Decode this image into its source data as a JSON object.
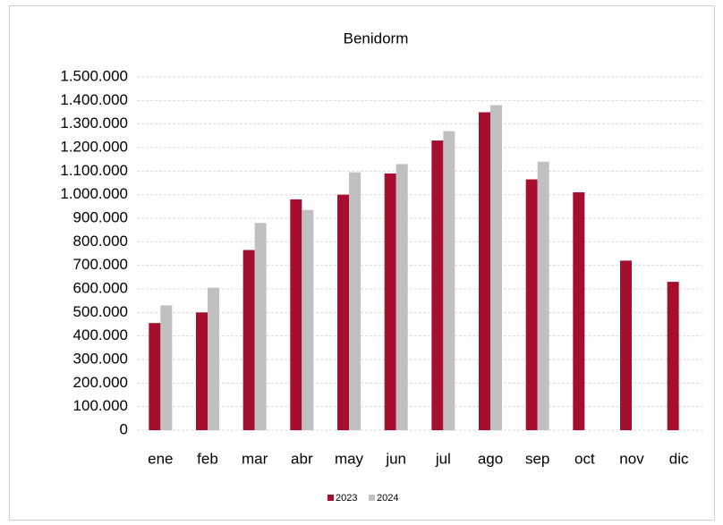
{
  "chart_data": {
    "type": "bar",
    "title": "Benidorm",
    "categories": [
      "ene",
      "feb",
      "mar",
      "abr",
      "may",
      "jun",
      "jul",
      "ago",
      "sep",
      "oct",
      "nov",
      "dic"
    ],
    "series": [
      {
        "name": "2023",
        "color": "#a50e2d",
        "values": [
          455000,
          500000,
          765000,
          980000,
          1000000,
          1090000,
          1230000,
          1350000,
          1065000,
          1010000,
          720000,
          630000
        ]
      },
      {
        "name": "2024",
        "color": "#c0c0c0",
        "values": [
          530000,
          605000,
          880000,
          935000,
          1095000,
          1130000,
          1270000,
          1380000,
          1140000,
          null,
          null,
          null
        ]
      }
    ],
    "ylim": [
      0,
      1500000
    ],
    "yticks": [
      0,
      {
        "value": 100000,
        "label": "100.000"
      },
      {
        "value": 200000,
        "label": "200.000"
      },
      {
        "value": 300000,
        "label": "300.000"
      },
      {
        "value": 400000,
        "label": "400.000"
      },
      {
        "value": 500000,
        "label": "500.000"
      },
      {
        "value": 600000,
        "label": "600.000"
      },
      {
        "value": 700000,
        "label": "700.000"
      },
      {
        "value": 800000,
        "label": "800.000"
      },
      {
        "value": 900000,
        "label": "900.000"
      },
      {
        "value": 1000000,
        "label": "1.000.000"
      },
      {
        "value": 1100000,
        "label": "1.100.000"
      },
      {
        "value": 1200000,
        "label": "1.200.000"
      },
      {
        "value": 1300000,
        "label": "1.300.000"
      },
      {
        "value": 1400000,
        "label": "1.400.000"
      },
      {
        "value": 1500000,
        "label": "1.500.000"
      }
    ],
    "grid": true,
    "legend": "bottom"
  }
}
